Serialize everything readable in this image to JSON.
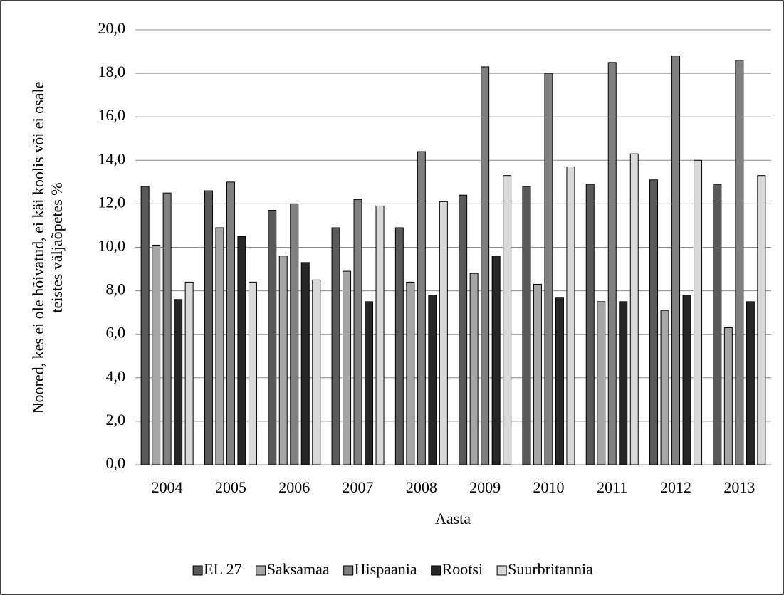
{
  "chart_data": {
    "type": "bar",
    "y_label": [
      "Noored, kes ei ole hõivatud, ei käi koolis või ei osale",
      "teistes väljaõpetes %"
    ],
    "x_label": "Aasta",
    "categories": [
      "2004",
      "2005",
      "2006",
      "2007",
      "2008",
      "2009",
      "2010",
      "2011",
      "2012",
      "2013"
    ],
    "series": [
      {
        "name": "EL 27",
        "color": "#595959",
        "values": [
          12.8,
          12.6,
          11.7,
          10.9,
          10.9,
          12.4,
          12.8,
          12.9,
          13.1,
          12.9
        ]
      },
      {
        "name": "Saksamaa",
        "color": "#a6a6a6",
        "values": [
          10.1,
          10.9,
          9.6,
          8.9,
          8.4,
          8.8,
          8.3,
          7.5,
          7.1,
          6.3
        ]
      },
      {
        "name": "Hispaania",
        "color": "#808080",
        "values": [
          12.5,
          13.0,
          12.0,
          12.2,
          14.4,
          18.3,
          18.0,
          18.5,
          18.8,
          18.6
        ]
      },
      {
        "name": "Rootsi",
        "color": "#262626",
        "values": [
          7.6,
          10.5,
          9.3,
          7.5,
          7.8,
          9.6,
          7.7,
          7.5,
          7.8,
          7.5
        ]
      },
      {
        "name": "Suurbritannia",
        "color": "#d9d9d9",
        "values": [
          8.4,
          8.4,
          8.5,
          11.9,
          12.1,
          13.3,
          13.7,
          14.3,
          14.0,
          13.3
        ]
      }
    ],
    "ylim": [
      0,
      20
    ],
    "yticks": [
      {
        "value": 0,
        "label": "0,0"
      },
      {
        "value": 2,
        "label": "2,0"
      },
      {
        "value": 4,
        "label": "4,0"
      },
      {
        "value": 6,
        "label": "6,0"
      },
      {
        "value": 8,
        "label": "8,0"
      },
      {
        "value": 10,
        "label": "10,0"
      },
      {
        "value": 12,
        "label": "12,0"
      },
      {
        "value": 14,
        "label": "14,0"
      },
      {
        "value": 16,
        "label": "16,0"
      },
      {
        "value": 18,
        "label": "18,0"
      },
      {
        "value": 20,
        "label": "20,0"
      }
    ],
    "grid": true,
    "legend": "bottom"
  }
}
